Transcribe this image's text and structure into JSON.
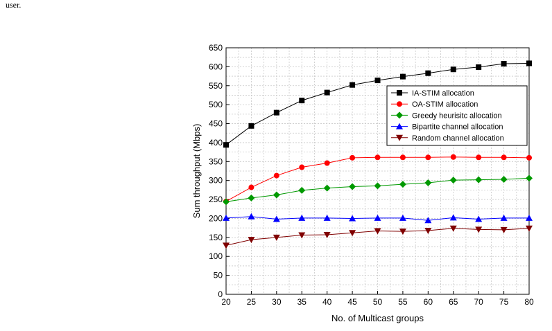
{
  "caption": "user.",
  "chart_data": {
    "type": "line",
    "title": "",
    "xlabel": "No. of Multicast groups",
    "ylabel": "Sum throughput (Mbps)",
    "xlim": [
      20,
      80
    ],
    "ylim": [
      0,
      650
    ],
    "x": [
      20,
      25,
      30,
      35,
      40,
      45,
      50,
      55,
      60,
      65,
      70,
      75,
      80
    ],
    "x_ticks": [
      20,
      25,
      30,
      35,
      40,
      45,
      50,
      55,
      60,
      65,
      70,
      75,
      80
    ],
    "y_ticks": [
      0,
      50,
      100,
      150,
      200,
      250,
      300,
      350,
      400,
      450,
      500,
      550,
      600,
      650
    ],
    "grid": true,
    "legend_position": "upper-right",
    "series": [
      {
        "name": "IA-STIM allocation",
        "color": "#000000",
        "marker": "square",
        "values": [
          394,
          444,
          479,
          511,
          532,
          552,
          564,
          574,
          583,
          593,
          599,
          608,
          609
        ]
      },
      {
        "name": "OA-STIM allocation",
        "color": "#ff0000",
        "marker": "circle",
        "values": [
          245,
          282,
          313,
          335,
          346,
          360,
          361,
          361,
          361,
          362,
          361,
          361,
          360
        ]
      },
      {
        "name": "Greedy heurisitc allocation",
        "color": "#009900",
        "marker": "diamond",
        "values": [
          244,
          254,
          262,
          274,
          280,
          284,
          286,
          290,
          294,
          301,
          302,
          303,
          306
        ]
      },
      {
        "name": "Bipartite channel allocation",
        "color": "#0000ff",
        "marker": "triangle-up",
        "values": [
          201,
          205,
          198,
          201,
          201,
          200,
          201,
          201,
          195,
          202,
          198,
          201,
          201
        ]
      },
      {
        "name": "Random channel allocation",
        "color": "#800000",
        "marker": "triangle-down",
        "values": [
          129,
          144,
          150,
          156,
          157,
          162,
          167,
          166,
          168,
          174,
          171,
          170,
          174
        ]
      }
    ]
  }
}
